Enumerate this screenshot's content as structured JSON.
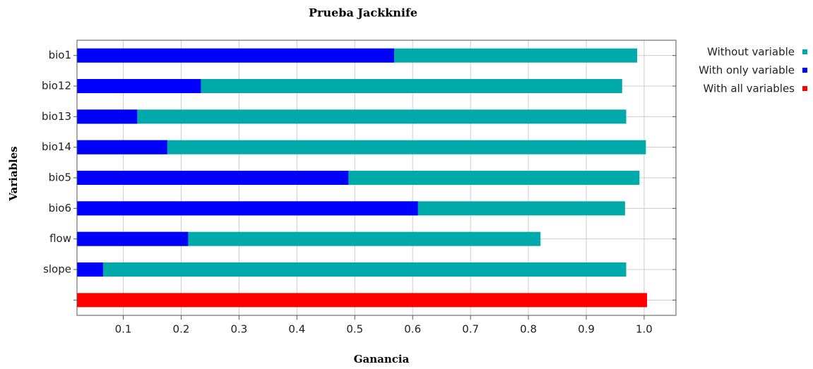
{
  "chart_data": {
    "type": "bar",
    "orientation": "horizontal",
    "title": "Prueba Jackknife",
    "x_label": "Ganancia",
    "y_label": "Variables",
    "categories": [
      "bio1",
      "bio12",
      "bio13",
      "bio14",
      "bio5",
      "bio6",
      "flow",
      "slope",
      null
    ],
    "series": [
      {
        "name": "Without variable",
        "color": "#00aaaa",
        "values": [
          0.988,
          0.962,
          0.969,
          1.003,
          0.992,
          0.967,
          0.821,
          0.969,
          null
        ]
      },
      {
        "name": "With only variable",
        "color": "#0000ff",
        "values": [
          0.568,
          0.234,
          0.124,
          0.176,
          0.489,
          0.609,
          0.212,
          0.065,
          null
        ]
      },
      {
        "name": "With all variables",
        "color": "#ff0000",
        "values": [
          null,
          null,
          null,
          null,
          null,
          null,
          null,
          null,
          1.005
        ]
      }
    ],
    "xlim": [
      0.02,
      1.055
    ],
    "xticks": [
      0.1,
      0.2,
      0.3,
      0.4,
      0.5,
      0.6,
      0.7,
      0.8,
      0.9,
      {
        "value": 1,
        "label": "1.0"
      }
    ],
    "grid": true,
    "legend": "outside-top-right"
  }
}
